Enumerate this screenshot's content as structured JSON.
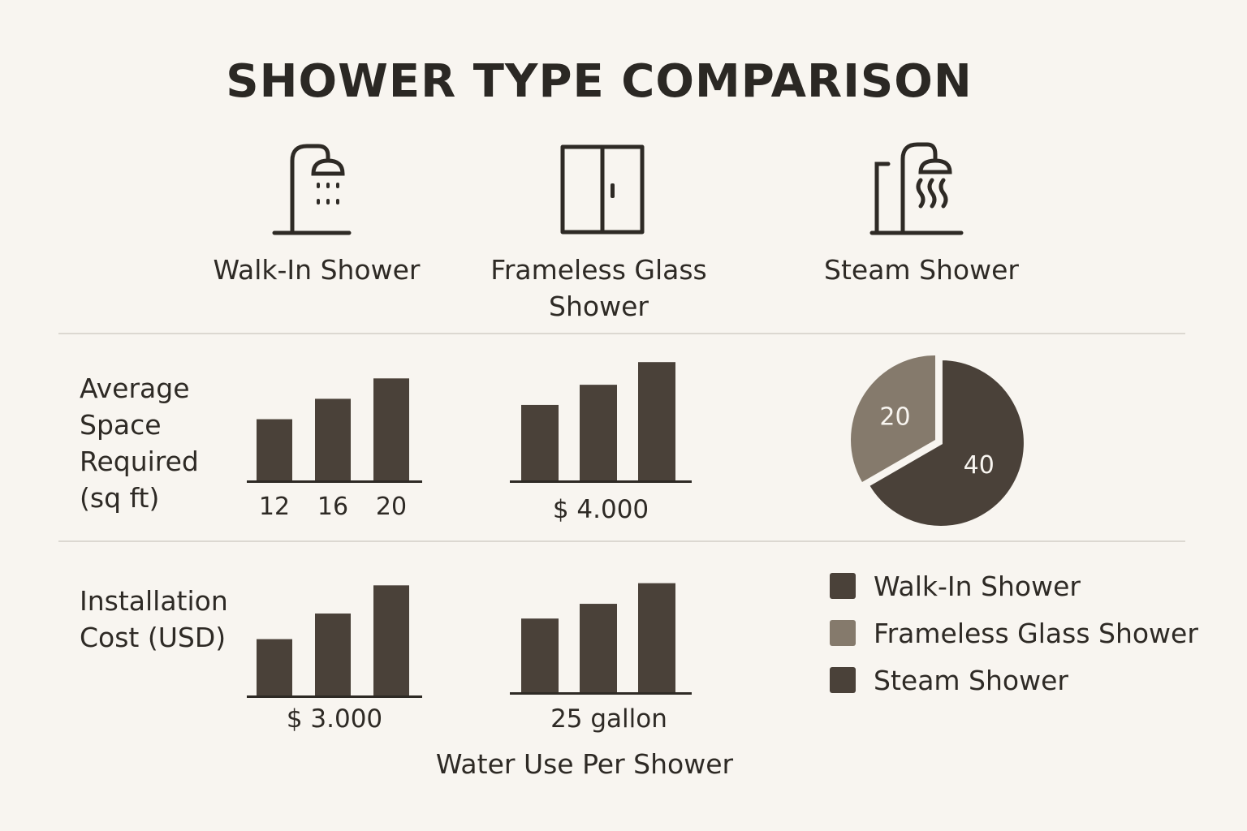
{
  "title": "SHOWER TYPE COMPARISON",
  "shower_types": [
    {
      "label": "Walk-In Shower",
      "icon": "walk-in-shower-icon"
    },
    {
      "label": "Frameless Glass Shower",
      "icon": "glass-door-icon"
    },
    {
      "label": "Steam Shower",
      "icon": "steam-shower-icon"
    }
  ],
  "rows": {
    "space": {
      "label": "Average Space Required (sq ft)"
    },
    "cost": {
      "label": "Installation Cost (USD)"
    }
  },
  "colors": {
    "dark": "#4a4139",
    "medium": "#857a6c",
    "background": "#f8f5f0"
  },
  "chart_data": [
    {
      "type": "bar",
      "categories": [
        "12",
        "16",
        "20"
      ],
      "values": [
        12,
        16,
        20
      ],
      "ylim": [
        0,
        21
      ],
      "caption": ""
    },
    {
      "type": "bar",
      "categories": [
        "",
        "",
        ""
      ],
      "values": [
        3000,
        3800,
        4700
      ],
      "ylim": [
        0,
        4900
      ],
      "caption": "$ 4.000"
    },
    {
      "type": "pie",
      "slices": [
        {
          "name": "Frameless Glass Shower",
          "value": 20,
          "label": "20",
          "color": "#857a6c"
        },
        {
          "name": "Steam Shower",
          "value": 40,
          "label": "40",
          "color": "#4a4139"
        }
      ]
    },
    {
      "type": "bar",
      "categories": [
        "",
        "",
        ""
      ],
      "values": [
        2200,
        3200,
        4300
      ],
      "ylim": [
        0,
        4500
      ],
      "caption": "$ 3.000"
    },
    {
      "type": "bar",
      "categories": [
        "",
        "",
        ""
      ],
      "values": [
        25,
        30,
        37
      ],
      "ylim": [
        0,
        38
      ],
      "caption": "25 gallon",
      "subcaption": "Water Use Per Shower"
    }
  ],
  "legend": [
    {
      "label": "Walk-In Shower",
      "color": "#4a4139"
    },
    {
      "label": "Frameless Glass Shower",
      "color": "#857a6c"
    },
    {
      "label": "Steam Shower",
      "color": "#4a4139"
    }
  ]
}
